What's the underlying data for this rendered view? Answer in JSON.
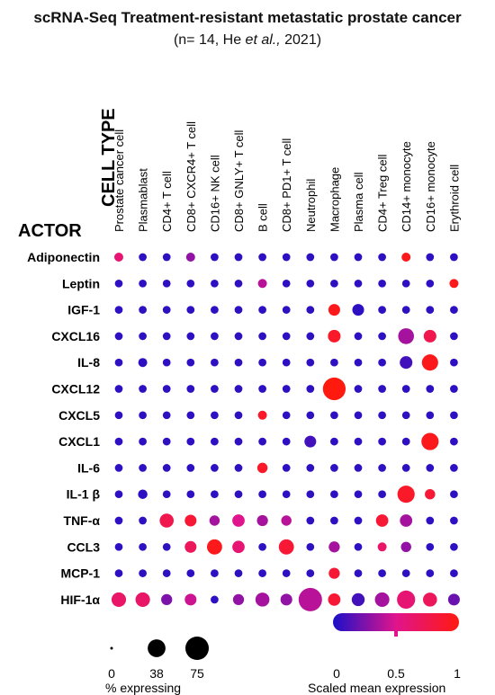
{
  "header": {
    "title": "scRNA-Seq  Treatment-resistant metastatic prostate cancer",
    "subtitle_prefix": "(n= 14, He ",
    "subtitle_italic": "et al.,",
    "subtitle_suffix": " 2021)"
  },
  "colors": {
    "low": "#1a10c8",
    "mid": "#e0148c",
    "high": "#ff1a10"
  },
  "chart_data": {
    "type": "dotplot",
    "column_axis_label": "CELL TYPE",
    "row_axis_label": "ACTOR",
    "columns": [
      "Prostate cancer cell",
      "Plasmablast",
      "CD4+ T cell",
      "CD8+ CXCR4+ T cell",
      "CD16+ NK cell",
      "CD8+ GNLY+ T cell",
      "B cell",
      "CD8+  PD1+ T cell",
      "Neutrophil",
      "Macrophage",
      "Plasma cell",
      "CD4+ Treg cell",
      "CD14+ monocyte",
      "CD16+ monocyte",
      "Erythroid cell"
    ],
    "rows": [
      "Adiponectin",
      "Leptin",
      "IGF-1",
      "CXCL16",
      "IL-8",
      "CXCL12",
      "CXCL5",
      "CXCL1",
      "IL-6",
      "IL-1 β",
      "TNF-α",
      "CCL3",
      "MCP-1",
      "HIF-1α"
    ],
    "pct_expressing": [
      [
        5,
        3,
        3,
        5,
        3,
        3,
        3,
        3,
        3,
        3,
        3,
        3,
        5,
        3,
        3
      ],
      [
        3,
        3,
        3,
        3,
        3,
        3,
        5,
        3,
        3,
        3,
        3,
        3,
        3,
        3,
        5
      ],
      [
        3,
        3,
        3,
        3,
        3,
        3,
        3,
        3,
        3,
        12,
        12,
        3,
        3,
        3,
        3
      ],
      [
        3,
        3,
        3,
        3,
        3,
        3,
        3,
        3,
        3,
        15,
        3,
        3,
        28,
        15,
        3
      ],
      [
        3,
        5,
        3,
        3,
        3,
        3,
        3,
        3,
        3,
        3,
        3,
        3,
        15,
        30,
        3
      ],
      [
        3,
        3,
        3,
        3,
        3,
        3,
        3,
        3,
        3,
        70,
        3,
        3,
        3,
        3,
        3
      ],
      [
        3,
        3,
        3,
        3,
        3,
        3,
        5,
        3,
        3,
        3,
        3,
        3,
        3,
        3,
        3
      ],
      [
        3,
        3,
        3,
        3,
        3,
        3,
        3,
        3,
        12,
        3,
        3,
        3,
        3,
        35,
        3
      ],
      [
        3,
        3,
        3,
        3,
        3,
        3,
        8,
        3,
        3,
        3,
        3,
        3,
        3,
        3,
        3
      ],
      [
        3,
        6,
        3,
        3,
        3,
        3,
        3,
        3,
        3,
        3,
        3,
        3,
        35,
        8,
        3
      ],
      [
        3,
        3,
        20,
        12,
        8,
        14,
        10,
        8,
        3,
        3,
        3,
        14,
        14,
        3,
        3
      ],
      [
        3,
        3,
        3,
        12,
        25,
        14,
        3,
        25,
        3,
        10,
        3,
        5,
        8,
        3,
        3
      ],
      [
        3,
        3,
        3,
        3,
        3,
        3,
        3,
        3,
        3,
        10,
        3,
        3,
        3,
        3,
        3
      ],
      [
        22,
        22,
        10,
        12,
        3,
        10,
        20,
        12,
        75,
        14,
        16,
        22,
        40,
        20,
        12
      ]
    ],
    "scaled_mean_expression": [
      [
        0.6,
        0.05,
        0.05,
        0.3,
        0.05,
        0.05,
        0.05,
        0.05,
        0.05,
        0.05,
        0.05,
        0.05,
        0.95,
        0.05,
        0.05
      ],
      [
        0.05,
        0.05,
        0.05,
        0.05,
        0.05,
        0.05,
        0.4,
        0.05,
        0.05,
        0.05,
        0.05,
        0.05,
        0.05,
        0.05,
        0.95
      ],
      [
        0.05,
        0.05,
        0.05,
        0.05,
        0.05,
        0.05,
        0.05,
        0.05,
        0.05,
        0.95,
        0.05,
        0.05,
        0.05,
        0.05,
        0.05
      ],
      [
        0.05,
        0.05,
        0.05,
        0.05,
        0.05,
        0.05,
        0.05,
        0.05,
        0.05,
        0.9,
        0.05,
        0.05,
        0.35,
        0.75,
        0.05
      ],
      [
        0.05,
        0.05,
        0.05,
        0.05,
        0.05,
        0.05,
        0.05,
        0.05,
        0.05,
        0.05,
        0.05,
        0.05,
        0.1,
        0.95,
        0.05
      ],
      [
        0.05,
        0.05,
        0.05,
        0.05,
        0.05,
        0.05,
        0.05,
        0.05,
        0.05,
        1,
        0.05,
        0.05,
        0.05,
        0.05,
        0.05
      ],
      [
        0.05,
        0.05,
        0.05,
        0.05,
        0.05,
        0.05,
        0.9,
        0.05,
        0.05,
        0.05,
        0.05,
        0.05,
        0.05,
        0.05,
        0.05
      ],
      [
        0.05,
        0.05,
        0.05,
        0.05,
        0.05,
        0.05,
        0.05,
        0.05,
        0.1,
        0.05,
        0.05,
        0.05,
        0.05,
        0.95,
        0.05
      ],
      [
        0.05,
        0.05,
        0.05,
        0.05,
        0.05,
        0.05,
        0.9,
        0.05,
        0.05,
        0.05,
        0.05,
        0.05,
        0.05,
        0.05,
        0.05
      ],
      [
        0.05,
        0.05,
        0.05,
        0.05,
        0.05,
        0.05,
        0.05,
        0.05,
        0.05,
        0.05,
        0.05,
        0.05,
        0.9,
        0.85,
        0.05
      ],
      [
        0.05,
        0.05,
        0.75,
        0.85,
        0.35,
        0.5,
        0.35,
        0.4,
        0.05,
        0.05,
        0.05,
        0.85,
        0.35,
        0.05,
        0.05
      ],
      [
        0.05,
        0.05,
        0.05,
        0.7,
        0.95,
        0.6,
        0.05,
        0.85,
        0.05,
        0.35,
        0.05,
        0.65,
        0.3,
        0.05,
        0.05
      ],
      [
        0.05,
        0.05,
        0.05,
        0.05,
        0.05,
        0.05,
        0.05,
        0.05,
        0.05,
        0.85,
        0.05,
        0.05,
        0.05,
        0.05,
        0.05
      ],
      [
        0.65,
        0.65,
        0.25,
        0.45,
        0.05,
        0.3,
        0.35,
        0.3,
        0.4,
        0.85,
        0.1,
        0.35,
        0.6,
        0.7,
        0.2
      ]
    ],
    "size_legend": {
      "values": [
        0,
        38,
        75
      ],
      "labels": [
        "0",
        "38",
        "75"
      ],
      "title": "% expressing"
    },
    "color_legend": {
      "range": [
        0,
        1
      ],
      "ticks": [
        "0",
        "0.5",
        "1"
      ],
      "title": "Scaled mean expression"
    }
  }
}
